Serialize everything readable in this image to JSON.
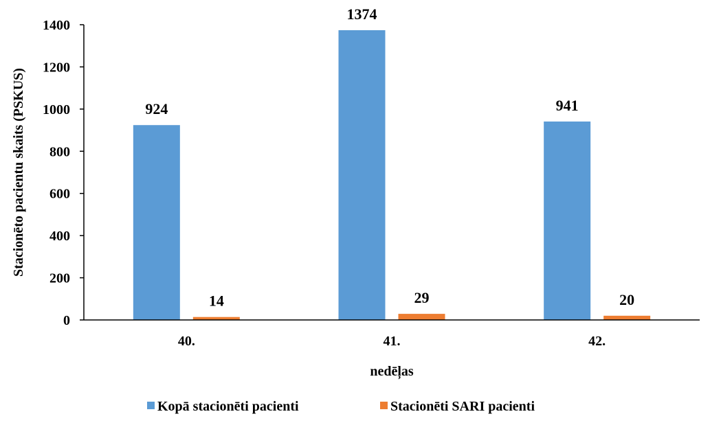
{
  "chart_data": {
    "type": "bar",
    "categories": [
      "40.",
      "41.",
      "42."
    ],
    "series": [
      {
        "name": "Kopā stacionēti pacienti",
        "values": [
          924,
          1374,
          941
        ],
        "color": "#5B9BD5"
      },
      {
        "name": "Stacionēti SARI pacienti",
        "values": [
          14,
          29,
          20
        ],
        "color": "#ED7D31"
      }
    ],
    "xlabel": "nedēļas",
    "ylabel": "Stacionēto pacientu skaits (PSKUS)",
    "ylim": [
      0,
      1400
    ],
    "yticks": [
      "0",
      "200",
      "400",
      "600",
      "800",
      "1000",
      "1200",
      "1400"
    ],
    "grid": false,
    "legend_position": "bottom"
  }
}
